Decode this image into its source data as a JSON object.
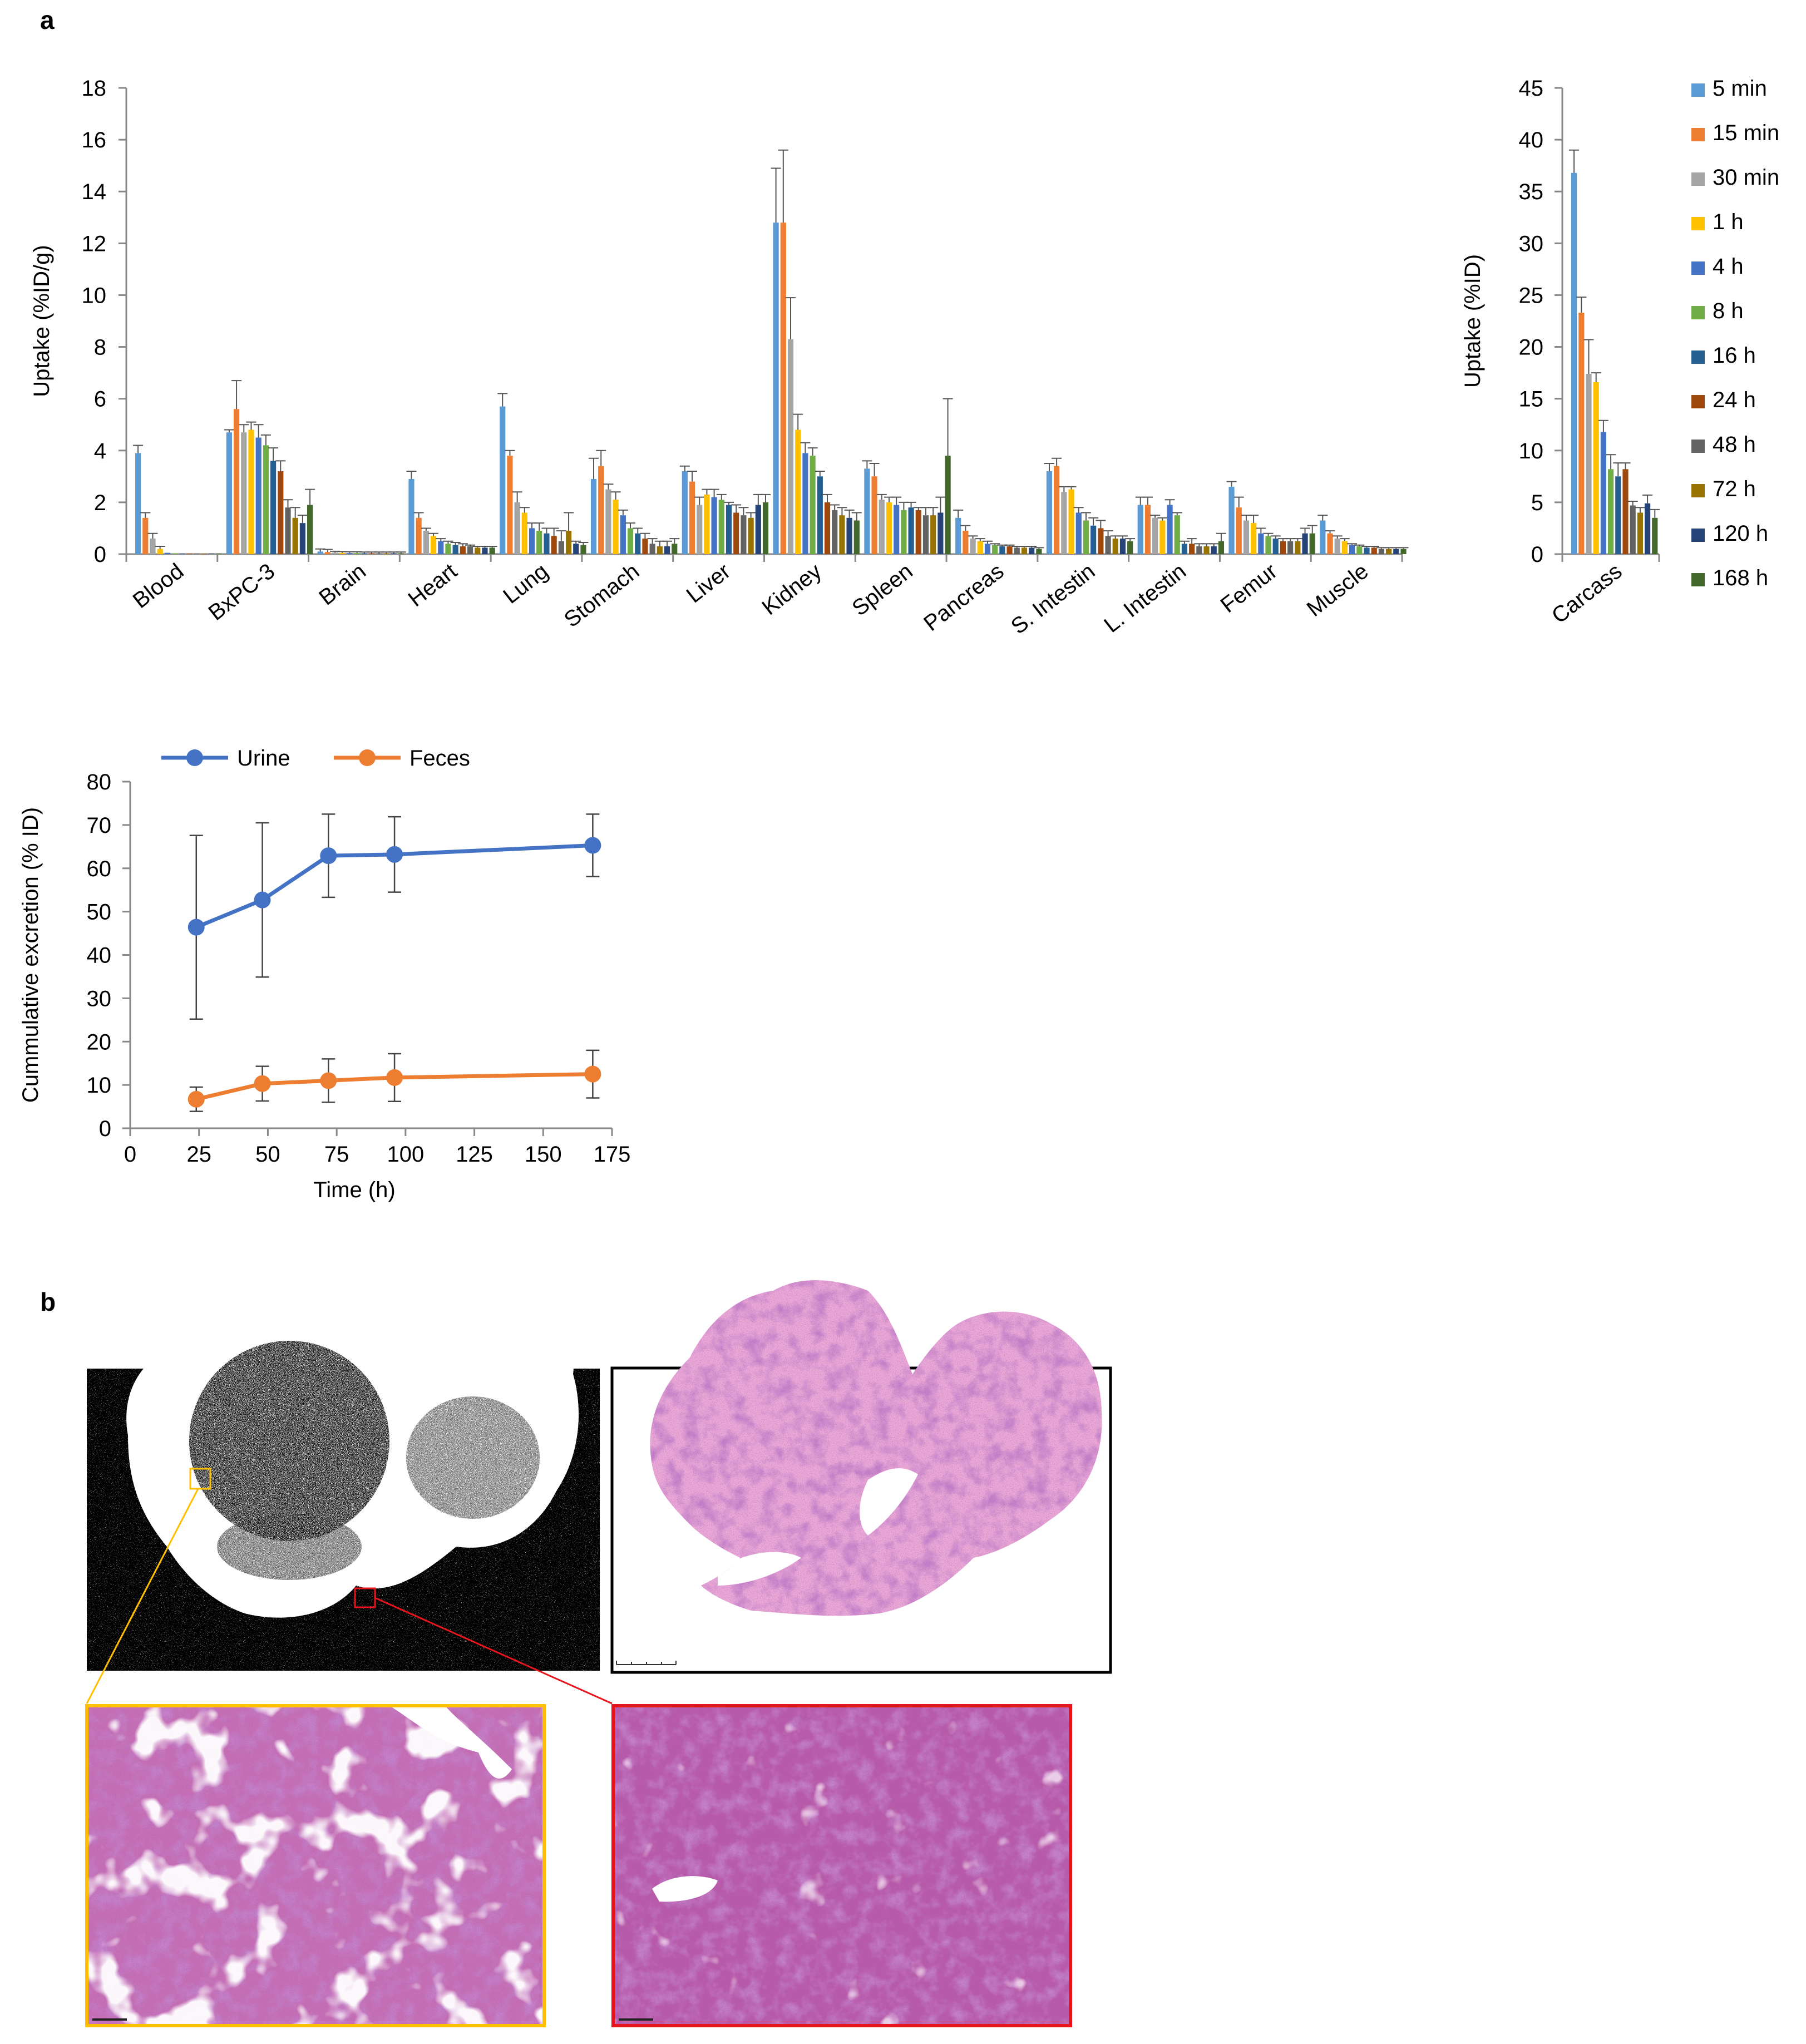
{
  "panel_labels": {
    "a": "a",
    "b": "b"
  },
  "legend_series": [
    "5 min",
    "15 min",
    "30 min",
    "1 h",
    "4 h",
    "8 h",
    "16 h",
    "24 h",
    "48 h",
    "72 h",
    "120 h",
    "168 h"
  ],
  "colors": {
    "series": [
      "#5B9BD5",
      "#ED7D31",
      "#A5A5A5",
      "#FFC000",
      "#4472C4",
      "#70AD47",
      "#255E91",
      "#9E480E",
      "#636363",
      "#997300",
      "#264478",
      "#43682B"
    ],
    "urine": "#4472C4",
    "feces": "#ED7D31",
    "yellow_box": "#FFC000",
    "red_box": "#E8141B",
    "he_pink": "#D98BC4"
  },
  "chart_data": [
    {
      "type": "bar",
      "name": "organ-uptake",
      "ylabel": "Uptake (%ID/g)",
      "ylim": [
        0,
        18
      ],
      "yticks": [
        0,
        2,
        4,
        6,
        8,
        10,
        12,
        14,
        16,
        18
      ],
      "categories": [
        "Blood",
        "BxPC-3",
        "Brain",
        "Heart",
        "Lung",
        "Stomach",
        "Liver",
        "Kidney",
        "Spleen",
        "Pancreas",
        "S. Intestin",
        "L. Intestin",
        "Femur",
        "Muscle"
      ],
      "series_names": [
        "5 min",
        "15 min",
        "30 min",
        "1 h",
        "4 h",
        "8 h",
        "16 h",
        "24 h",
        "48 h",
        "72 h",
        "120 h",
        "168 h"
      ],
      "values": [
        [
          3.9,
          1.4,
          0.6,
          0.2,
          0.05,
          0.03,
          0.02,
          0.02,
          0.02,
          0.02,
          0.02,
          0.02
        ],
        [
          4.7,
          5.6,
          4.7,
          4.8,
          4.5,
          4.2,
          3.6,
          3.2,
          1.8,
          1.4,
          1.2,
          1.9
        ],
        [
          0.1,
          0.08,
          0.06,
          0.05,
          0.04,
          0.04,
          0.03,
          0.03,
          0.03,
          0.03,
          0.03,
          0.03
        ],
        [
          2.9,
          1.4,
          0.9,
          0.7,
          0.5,
          0.4,
          0.35,
          0.3,
          0.3,
          0.25,
          0.25,
          0.25
        ],
        [
          5.7,
          3.8,
          2.0,
          1.6,
          1.0,
          0.9,
          0.8,
          0.7,
          0.5,
          0.9,
          0.4,
          0.35
        ],
        [
          2.9,
          3.4,
          2.5,
          2.1,
          1.5,
          1.0,
          0.8,
          0.6,
          0.4,
          0.3,
          0.3,
          0.4
        ],
        [
          3.2,
          2.8,
          1.9,
          2.3,
          2.2,
          2.1,
          1.9,
          1.6,
          1.5,
          1.4,
          1.9,
          2.0
        ],
        [
          12.8,
          12.8,
          8.3,
          4.8,
          3.9,
          3.8,
          3.0,
          2.0,
          1.7,
          1.5,
          1.4,
          1.3
        ],
        [
          3.3,
          3.0,
          2.1,
          2.0,
          1.9,
          1.7,
          1.8,
          1.7,
          1.5,
          1.5,
          1.6,
          3.8
        ],
        [
          1.4,
          0.9,
          0.6,
          0.5,
          0.4,
          0.35,
          0.3,
          0.3,
          0.25,
          0.25,
          0.25,
          0.2
        ],
        [
          3.2,
          3.4,
          2.4,
          2.5,
          1.6,
          1.3,
          1.1,
          1.0,
          0.7,
          0.6,
          0.6,
          0.5
        ],
        [
          1.9,
          1.9,
          1.4,
          1.3,
          1.9,
          1.5,
          0.4,
          0.4,
          0.3,
          0.3,
          0.3,
          0.5
        ],
        [
          2.6,
          1.8,
          1.3,
          1.2,
          0.8,
          0.7,
          0.6,
          0.5,
          0.5,
          0.5,
          0.8,
          0.8
        ],
        [
          1.3,
          0.8,
          0.6,
          0.5,
          0.35,
          0.3,
          0.25,
          0.25,
          0.2,
          0.2,
          0.2,
          0.2
        ]
      ],
      "errors": [
        [
          0.3,
          0.2,
          0.2,
          0.1,
          0,
          0,
          0,
          0,
          0,
          0,
          0,
          0
        ],
        [
          0.1,
          1.1,
          0.3,
          0.3,
          0.5,
          0.4,
          0.5,
          0.4,
          0.3,
          0.4,
          0.3,
          0.6
        ],
        [
          0.1,
          0.1,
          0.05,
          0.05,
          0.05,
          0.05,
          0.05,
          0.05,
          0.05,
          0.05,
          0.05,
          0.05
        ],
        [
          0.3,
          0.2,
          0.1,
          0.1,
          0.1,
          0.1,
          0.1,
          0.1,
          0.05,
          0.05,
          0.05,
          0.05
        ],
        [
          0.5,
          0.2,
          0.4,
          0.2,
          0.2,
          0.3,
          0.2,
          0.3,
          0.4,
          0.7,
          0.1,
          0.1
        ],
        [
          0.8,
          0.6,
          0.2,
          0.3,
          0.2,
          0.2,
          0.2,
          0.2,
          0.2,
          0.2,
          0.2,
          0.2
        ],
        [
          0.2,
          0.4,
          0.3,
          0.2,
          0.3,
          0.2,
          0.1,
          0.3,
          0.3,
          0.2,
          0.4,
          0.3
        ],
        [
          2.1,
          2.8,
          1.6,
          0.6,
          0.4,
          0.3,
          0.2,
          0.3,
          0.2,
          0.3,
          0.3,
          0.3
        ],
        [
          0.3,
          0.5,
          0.2,
          0.2,
          0.3,
          0.3,
          0.2,
          0.1,
          0.3,
          0.3,
          0.6,
          2.2
        ],
        [
          0.3,
          0.2,
          0.1,
          0.1,
          0.1,
          0.05,
          0.05,
          0.05,
          0.05,
          0.05,
          0.05,
          0.05
        ],
        [
          0.3,
          0.3,
          0.2,
          0.1,
          0.2,
          0.3,
          0.3,
          0.3,
          0.2,
          0.1,
          0.1,
          0.1
        ],
        [
          0.3,
          0.3,
          0.1,
          0.1,
          0.2,
          0.1,
          0.1,
          0.2,
          0.1,
          0.1,
          0.1,
          0.3
        ],
        [
          0.2,
          0.4,
          0.2,
          0.3,
          0.2,
          0.1,
          0.1,
          0.1,
          0.1,
          0.1,
          0.2,
          0.3
        ],
        [
          0.2,
          0.1,
          0.1,
          0.1,
          0.05,
          0.05,
          0.05,
          0.05,
          0.05,
          0.05,
          0.05,
          0.05
        ]
      ]
    },
    {
      "type": "bar",
      "name": "carcass-uptake",
      "ylabel": "Uptake (%ID)",
      "ylim": [
        0,
        45
      ],
      "yticks": [
        0,
        5,
        10,
        15,
        20,
        25,
        30,
        35,
        40,
        45
      ],
      "categories": [
        "Carcass"
      ],
      "series_names": [
        "5 min",
        "15 min",
        "30 min",
        "1 h",
        "4 h",
        "8 h",
        "16 h",
        "24 h",
        "48 h",
        "72 h",
        "120 h",
        "168 h"
      ],
      "values": [
        [
          36.8,
          23.3,
          17.4,
          16.6,
          11.8,
          8.2,
          7.5,
          8.2,
          4.7,
          4.0,
          4.9,
          3.5
        ]
      ],
      "errors": [
        [
          2.2,
          1.5,
          3.3,
          0.9,
          1.1,
          1.4,
          1.3,
          0.6,
          0.4,
          0.5,
          0.8,
          0.8
        ]
      ]
    },
    {
      "type": "line",
      "name": "cumulative-excretion",
      "xlabel": "Time (h)",
      "ylabel": "Cummulative excretion (% ID)",
      "xlim": [
        0,
        175
      ],
      "ylim": [
        0,
        80
      ],
      "xticks": [
        0,
        25,
        50,
        75,
        100,
        125,
        150,
        175
      ],
      "yticks": [
        0,
        10,
        20,
        30,
        40,
        50,
        60,
        70,
        80
      ],
      "legend": "top",
      "x": [
        24,
        48,
        72,
        96,
        168
      ],
      "series": [
        {
          "name": "Urine",
          "values": [
            46.4,
            52.7,
            62.9,
            63.2,
            65.3
          ],
          "errors": [
            21.2,
            17.8,
            9.6,
            8.7,
            7.2
          ]
        },
        {
          "name": "Feces",
          "values": [
            6.7,
            10.3,
            11.0,
            11.7,
            12.5
          ],
          "errors": [
            2.8,
            4.0,
            5.0,
            5.5,
            5.5
          ]
        }
      ]
    }
  ]
}
